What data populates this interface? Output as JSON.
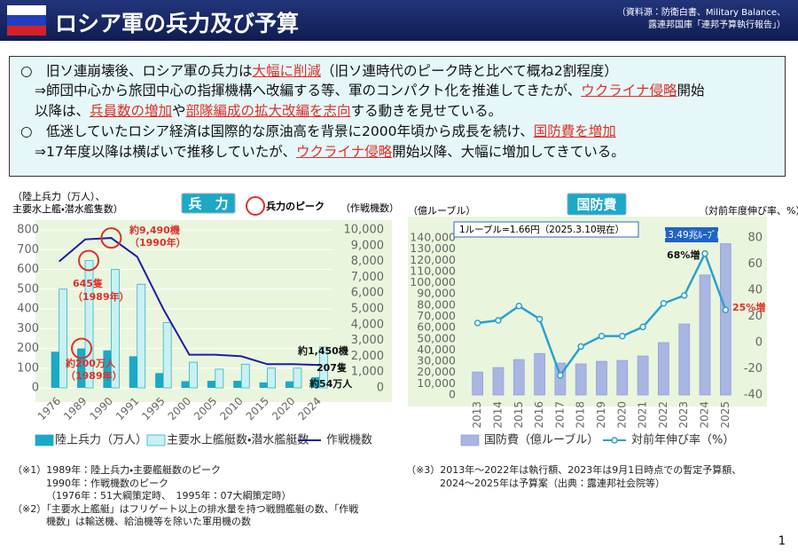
{
  "header": {
    "title": "ロシア軍の兵力及び予算",
    "source": [
      "（資料源：防衛白書、Military Balance、",
      "露連邦国庫「連邦予算執行報告」）"
    ]
  },
  "intro": {
    "lines": [
      [
        {
          "text": "○　旧ソ連崩壊後、ロシア軍の兵力は",
          "highlight": false
        },
        {
          "text": "大幅に削減",
          "highlight": true
        },
        {
          "text": "（旧ソ連時代のピーク時と比べて概ね2割程度）",
          "highlight": false
        }
      ],
      [
        {
          "text": "⇒師団中心から旅団中心の指揮機構へ改編する等、軍のコンパクト化を推進してきたが、",
          "highlight": false
        },
        {
          "text": "ウクライナ侵略",
          "highlight": true
        },
        {
          "text": "開始",
          "highlight": false
        }
      ],
      [
        {
          "text": "以降は、",
          "highlight": false
        },
        {
          "text": "兵員数の増加",
          "highlight": true
        },
        {
          "text": "や",
          "highlight": false
        },
        {
          "text": "部隊編成の拡大改編を志向",
          "highlight": true
        },
        {
          "text": "する動きを見せている。",
          "highlight": false
        }
      ],
      [
        {
          "text": "○　低迷していたロシア経済は国際的な原油高を背景に2000年頃から成長を続け、",
          "highlight": false
        },
        {
          "text": "国防費を増加",
          "highlight": true
        }
      ],
      [
        {
          "text": "⇒17年度以降は横ばいで推移していたが、",
          "highlight": false
        },
        {
          "text": "ウクライナ侵略",
          "highlight": true
        },
        {
          "text": "開始以降、大幅に増加してきている。",
          "highlight": false
        }
      ]
    ]
  },
  "chart_data": [
    {
      "type": "bar",
      "title": "兵　力",
      "ylabel": [
        "（陸上兵力（万人）、",
        "主要水上艦・潜水艦隻数）"
      ],
      "y2label": "（作戦機数）",
      "categories": [
        "1976",
        "1989",
        "1990",
        "1991",
        "1995",
        "2000",
        "2005",
        "2010",
        "2015",
        "2020",
        "2024"
      ],
      "series": [
        {
          "name": "陸上兵力（万人）",
          "type": "bar",
          "color": "#1ba9c6",
          "values": [
            183,
            200,
            190,
            160,
            75,
            34,
            36,
            36,
            28,
            33,
            54
          ]
        },
        {
          "name": "主要水上艦艇数・潜水艦艇数",
          "type": "bar",
          "color": "#c9f1f1",
          "values": [
            500,
            645,
            600,
            525,
            330,
            130,
            95,
            120,
            100,
            100,
            207
          ]
        },
        {
          "name": "作戦機数",
          "type": "line",
          "axis": "y2",
          "color": "#1c1ca8",
          "values": [
            8000,
            9400,
            9490,
            8300,
            5000,
            2100,
            2100,
            2000,
            1500,
            1500,
            1450
          ]
        }
      ],
      "ylim": [
        0,
        800
      ],
      "yticks": [
        0,
        100,
        200,
        300,
        400,
        500,
        600,
        700,
        800
      ],
      "y2lim": [
        0,
        10000
      ],
      "y2ticks": [
        0,
        {
          "value": 1000,
          "label": "1,000"
        },
        {
          "value": 2000,
          "label": "2,000"
        },
        {
          "value": 3000,
          "label": "3,000"
        },
        {
          "value": 4000,
          "label": "4,000"
        },
        {
          "value": 5000,
          "label": "5,000"
        },
        {
          "value": 6000,
          "label": "6,000"
        },
        {
          "value": 7000,
          "label": "7,000"
        },
        {
          "value": 8000,
          "label": "8,000"
        },
        {
          "value": 9000,
          "label": "9,000"
        },
        {
          "value": 10000,
          "label": "10,000"
        }
      ],
      "grid": true,
      "peak_legend": "兵力のピーク",
      "annotations": [
        "約9,490機",
        "（1990年）",
        "645隻",
        "（1989年）",
        "約200万人",
        "（1989年）",
        "約1,450機",
        "207隻",
        "約54万人"
      ]
    },
    {
      "type": "bar",
      "title": "国防費",
      "ylabel": [
        "（億ルーブル）"
      ],
      "y2label": "（対前年度伸び率、%）",
      "note": "1ルーブル=1.66円（2025.3.10現在）",
      "highlight": "13.49兆ﾙｰﾌﾞﾙ",
      "categories": [
        "2013",
        "2014",
        "2015",
        "2016",
        "2017",
        "2018",
        "2019",
        "2020",
        "2021",
        "2022",
        "2023",
        "2024",
        "2025"
      ],
      "series": [
        {
          "name": "国防費（億ルーブル）",
          "type": "bar",
          "color": "#a9b5e2",
          "values": [
            20500,
            24500,
            31600,
            37000,
            28500,
            27700,
            30000,
            30800,
            34800,
            46700,
            63300,
            107000,
            134900
          ]
        },
        {
          "name": "対前年伸び率（%）",
          "type": "line",
          "axis": "y2",
          "color": "#2aa0d0",
          "values": [
            15,
            17,
            28,
            18,
            -25,
            -3,
            5,
            5,
            12,
            30,
            36,
            68,
            25
          ]
        }
      ],
      "ylim": [
        0,
        140000
      ],
      "yticks": [
        0,
        {
          "value": 10000,
          "label": "10,000"
        },
        {
          "value": 20000,
          "label": "20,000"
        },
        {
          "value": 30000,
          "label": "30,000"
        },
        {
          "value": 40000,
          "label": "40,000"
        },
        {
          "value": 50000,
          "label": "50,000"
        },
        {
          "value": 60000,
          "label": "60,000"
        },
        {
          "value": 70000,
          "label": "70,000"
        },
        {
          "value": 80000,
          "label": "80,000"
        },
        {
          "value": 90000,
          "label": "90,000"
        },
        {
          "value": 100000,
          "label": "100,000"
        },
        {
          "value": 110000,
          "label": "110,000"
        },
        {
          "value": 120000,
          "label": "120,000"
        },
        {
          "value": 130000,
          "label": "130,000"
        },
        {
          "value": 140000,
          "label": "140,000"
        }
      ],
      "y2lim": [
        -40,
        80
      ],
      "y2ticks": [
        -40,
        -20,
        0,
        20,
        40,
        60,
        80
      ],
      "grid": false,
      "annotations": [
        "68%増",
        "25%増"
      ]
    }
  ],
  "footnotes": {
    "left": [
      "（※1）1989年：陸上兵力・主要艦艇数のピーク",
      "1990年：作戦機数のピーク",
      "（1976年：51大綱策定時、　1995年：07大綱策定時）",
      "（※2）「主要水上艦艇」はフリゲート以上の排水量を持つ戦闘艦艇の数、「作戦",
      "機数」は輸送機、給油機等を除いた軍用機の数"
    ],
    "right": [
      "（※3）2013年～2022年は執行額、2023年は9月1日時点での暫定予算額、",
      "2024～2025年は予算案（出典：露連邦社会院等）"
    ]
  },
  "page_number": "1"
}
